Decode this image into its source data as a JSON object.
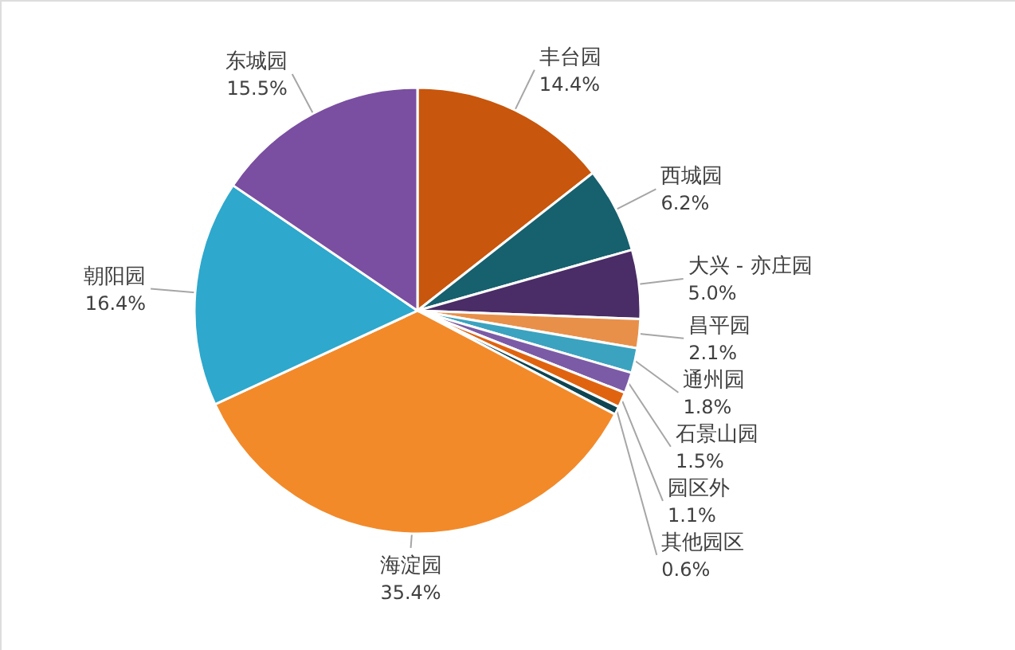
{
  "chart_data": {
    "type": "pie",
    "categories": [
      "丰台园",
      "西城园",
      "大兴 - 亦庄园",
      "昌平园",
      "通州园",
      "石景山园",
      "园区外",
      "其他园区",
      "海淀园",
      "朝阳园",
      "东城园"
    ],
    "values": [
      14.4,
      6.2,
      5.0,
      2.1,
      1.8,
      1.5,
      1.1,
      0.6,
      35.4,
      16.4,
      15.5
    ],
    "colors": [
      "#c8560c",
      "#17606e",
      "#4a2c66",
      "#e8904a",
      "#3ba3bf",
      "#7b5ba6",
      "#e0640f",
      "#0e4552",
      "#f28a2a",
      "#2ea8cc",
      "#7a4ea0"
    ],
    "value_labels": [
      "14.4%",
      "6.2%",
      "5.0%",
      "2.1%",
      "1.8%",
      "1.5%",
      "1.1%",
      "0.6%",
      "35.4%",
      "16.4%",
      "15.5%"
    ]
  }
}
